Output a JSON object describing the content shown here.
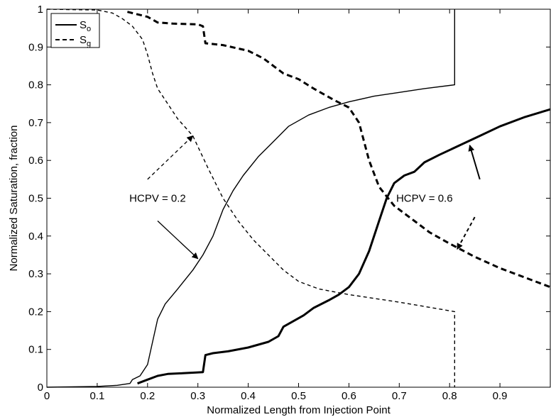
{
  "chart_data": {
    "type": "line",
    "xlabel": "Normalized Length from Injection Point",
    "ylabel": "Normalized Saturation, fraction",
    "xlim": [
      0,
      1
    ],
    "ylim": [
      0,
      1
    ],
    "grid": false,
    "legend_position": "top-left",
    "x_ticks": [
      0,
      0.1,
      0.2,
      0.3,
      0.4,
      0.5,
      0.6,
      0.7,
      0.8,
      0.9
    ],
    "x_tick_labels": [
      "0",
      "0.1",
      "0.2",
      "0.3",
      "0.4",
      "0.5",
      "0.6",
      "0.7",
      "0.8",
      "0.9"
    ],
    "y_ticks": [
      0,
      0.1,
      0.2,
      0.3,
      0.4,
      0.5,
      0.6,
      0.7,
      0.8,
      0.9,
      1
    ],
    "y_tick_labels": [
      "0",
      "0.1",
      "0.2",
      "0.3",
      "0.4",
      "0.5",
      "0.6",
      "0.7",
      "0.8",
      "0.9",
      "1"
    ],
    "legend": [
      {
        "base": "S",
        "sub": "o",
        "style": "solid"
      },
      {
        "base": "S",
        "sub": "g",
        "style": "dashed"
      }
    ],
    "series": [
      {
        "phase": "oil",
        "hcpv": 0.2,
        "style": "solid",
        "weight": "thin",
        "points": [
          [
            0,
            0
          ],
          [
            0.1,
            0.002
          ],
          [
            0.14,
            0.005
          ],
          [
            0.165,
            0.01
          ],
          [
            0.17,
            0.02
          ],
          [
            0.185,
            0.03
          ],
          [
            0.2,
            0.06
          ],
          [
            0.21,
            0.12
          ],
          [
            0.22,
            0.18
          ],
          [
            0.235,
            0.22
          ],
          [
            0.26,
            0.26
          ],
          [
            0.29,
            0.31
          ],
          [
            0.31,
            0.35
          ],
          [
            0.33,
            0.4
          ],
          [
            0.35,
            0.47
          ],
          [
            0.37,
            0.52
          ],
          [
            0.39,
            0.56
          ],
          [
            0.42,
            0.61
          ],
          [
            0.45,
            0.65
          ],
          [
            0.48,
            0.69
          ],
          [
            0.52,
            0.72
          ],
          [
            0.56,
            0.74
          ],
          [
            0.6,
            0.755
          ],
          [
            0.65,
            0.77
          ],
          [
            0.7,
            0.78
          ],
          [
            0.75,
            0.79
          ],
          [
            0.81,
            0.8
          ],
          [
            0.81,
            1
          ]
        ]
      },
      {
        "phase": "gas",
        "hcpv": 0.2,
        "style": "dashed",
        "weight": "thin",
        "points": [
          [
            0,
            1
          ],
          [
            0.1,
            0.998
          ],
          [
            0.13,
            0.99
          ],
          [
            0.15,
            0.975
          ],
          [
            0.17,
            0.955
          ],
          [
            0.19,
            0.92
          ],
          [
            0.2,
            0.88
          ],
          [
            0.21,
            0.83
          ],
          [
            0.22,
            0.79
          ],
          [
            0.24,
            0.75
          ],
          [
            0.26,
            0.71
          ],
          [
            0.29,
            0.665
          ],
          [
            0.32,
            0.58
          ],
          [
            0.35,
            0.5
          ],
          [
            0.38,
            0.44
          ],
          [
            0.41,
            0.39
          ],
          [
            0.44,
            0.35
          ],
          [
            0.47,
            0.31
          ],
          [
            0.5,
            0.28
          ],
          [
            0.54,
            0.26
          ],
          [
            0.6,
            0.245
          ],
          [
            0.7,
            0.225
          ],
          [
            0.81,
            0.2
          ],
          [
            0.81,
            0
          ]
        ]
      },
      {
        "phase": "oil",
        "hcpv": 0.6,
        "style": "solid",
        "weight": "thick",
        "points": [
          [
            0.18,
            0.01
          ],
          [
            0.2,
            0.02
          ],
          [
            0.22,
            0.03
          ],
          [
            0.24,
            0.035
          ],
          [
            0.27,
            0.037
          ],
          [
            0.31,
            0.04
          ],
          [
            0.315,
            0.085
          ],
          [
            0.33,
            0.09
          ],
          [
            0.36,
            0.095
          ],
          [
            0.4,
            0.105
          ],
          [
            0.44,
            0.12
          ],
          [
            0.46,
            0.135
          ],
          [
            0.47,
            0.16
          ],
          [
            0.49,
            0.175
          ],
          [
            0.51,
            0.19
          ],
          [
            0.53,
            0.21
          ],
          [
            0.56,
            0.23
          ],
          [
            0.58,
            0.245
          ],
          [
            0.6,
            0.265
          ],
          [
            0.62,
            0.3
          ],
          [
            0.64,
            0.36
          ],
          [
            0.66,
            0.44
          ],
          [
            0.675,
            0.5
          ],
          [
            0.69,
            0.54
          ],
          [
            0.71,
            0.56
          ],
          [
            0.73,
            0.57
          ],
          [
            0.75,
            0.595
          ],
          [
            0.78,
            0.615
          ],
          [
            0.82,
            0.64
          ],
          [
            0.86,
            0.665
          ],
          [
            0.9,
            0.69
          ],
          [
            0.95,
            0.715
          ],
          [
            1,
            0.735
          ]
        ]
      },
      {
        "phase": "gas",
        "hcpv": 0.6,
        "style": "dashed",
        "weight": "thick",
        "points": [
          [
            0.16,
            0.993
          ],
          [
            0.2,
            0.98
          ],
          [
            0.22,
            0.965
          ],
          [
            0.25,
            0.962
          ],
          [
            0.3,
            0.96
          ],
          [
            0.31,
            0.955
          ],
          [
            0.315,
            0.91
          ],
          [
            0.35,
            0.905
          ],
          [
            0.4,
            0.89
          ],
          [
            0.43,
            0.87
          ],
          [
            0.47,
            0.83
          ],
          [
            0.5,
            0.815
          ],
          [
            0.53,
            0.79
          ],
          [
            0.57,
            0.76
          ],
          [
            0.6,
            0.74
          ],
          [
            0.62,
            0.7
          ],
          [
            0.64,
            0.6
          ],
          [
            0.66,
            0.53
          ],
          [
            0.69,
            0.48
          ],
          [
            0.73,
            0.44
          ],
          [
            0.76,
            0.41
          ],
          [
            0.8,
            0.38
          ],
          [
            0.85,
            0.345
          ],
          [
            0.9,
            0.315
          ],
          [
            0.95,
            0.29
          ],
          [
            1,
            0.265
          ]
        ]
      }
    ],
    "annotations": [
      {
        "text": "HCPV = 0.2",
        "text_x": 0.22,
        "text_y": 0.5,
        "arrows": [
          {
            "from": [
              0.2,
              0.55
            ],
            "to": [
              0.29,
              0.665
            ],
            "style": "dashed"
          },
          {
            "from": [
              0.22,
              0.44
            ],
            "to": [
              0.3,
              0.34
            ],
            "style": "solid"
          }
        ]
      },
      {
        "text": "HCPV = 0.6",
        "text_x": 0.75,
        "text_y": 0.5,
        "arrows": [
          {
            "from": [
              0.86,
              0.55
            ],
            "to": [
              0.84,
              0.64
            ],
            "style": "solid"
          },
          {
            "from": [
              0.85,
              0.45
            ],
            "to": [
              0.815,
              0.365
            ],
            "style": "dashed"
          }
        ]
      }
    ]
  }
}
